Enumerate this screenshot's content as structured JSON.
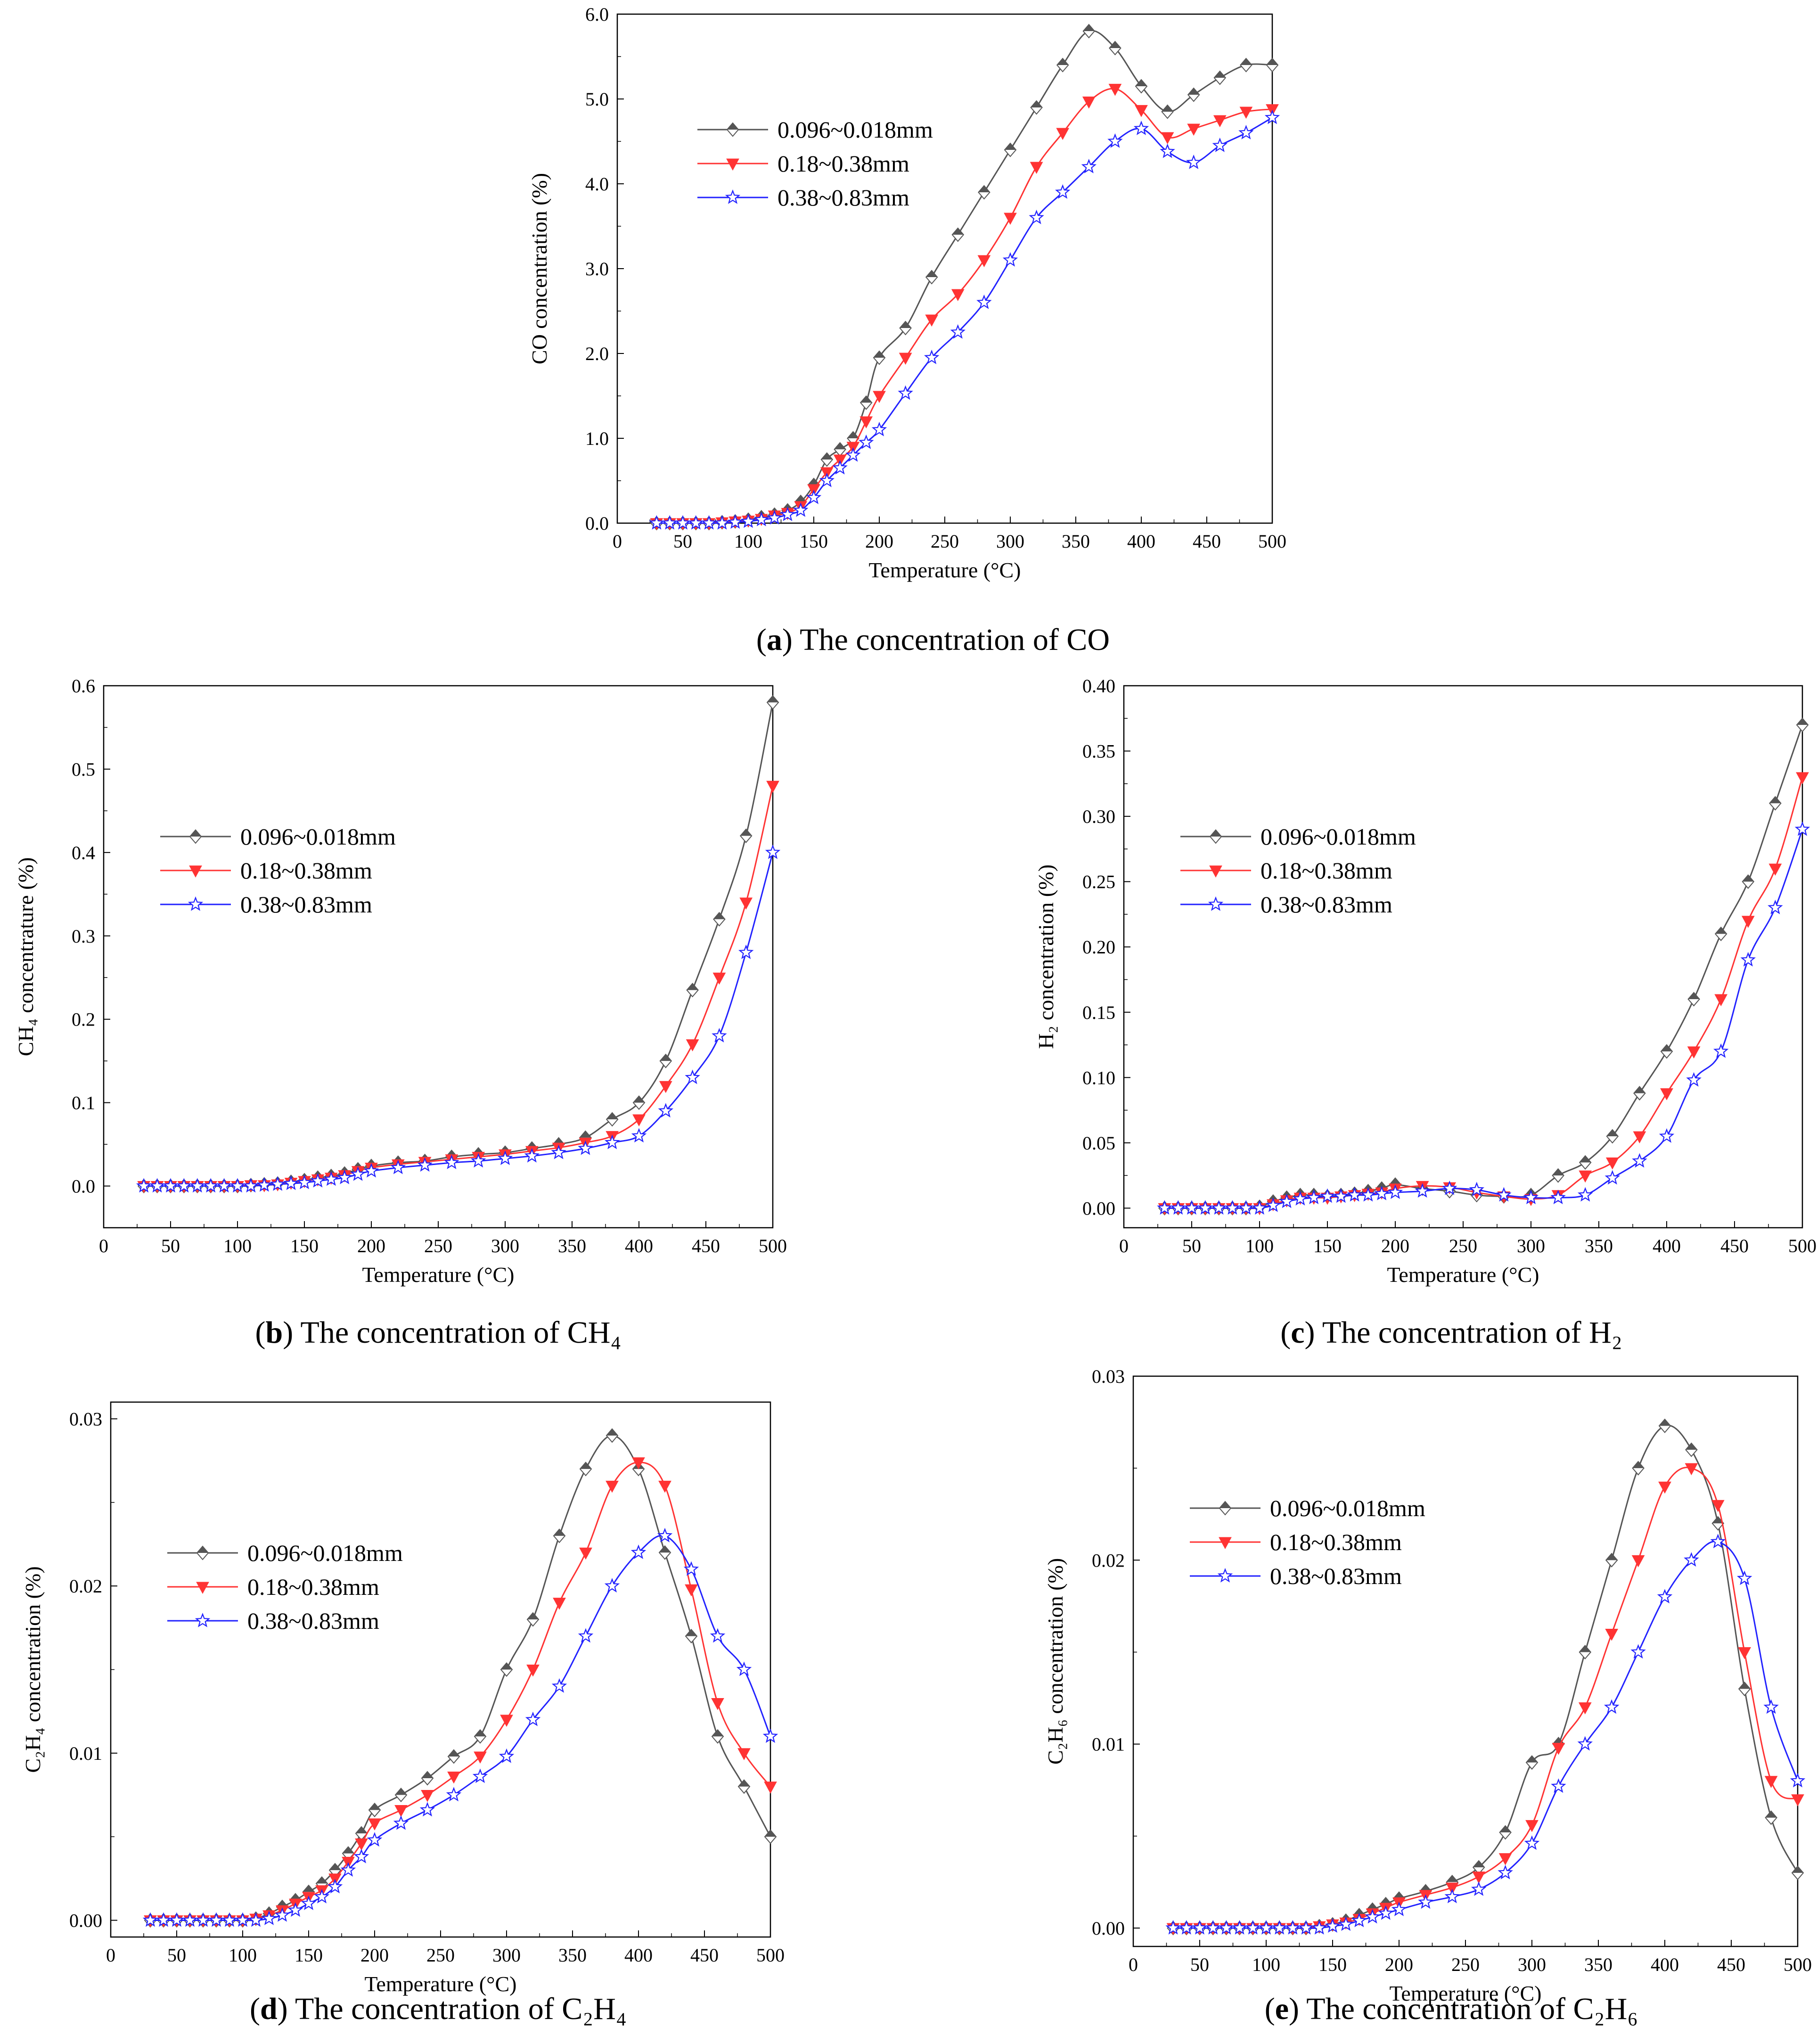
{
  "captions": [
    {
      "letter": "a",
      "text": ") The concentration of CO"
    },
    {
      "letter": "b",
      "text": ") The concentration of CH₄"
    },
    {
      "letter": "c",
      "text": ") The concentration of H₂"
    },
    {
      "letter": "d",
      "text": ") The concentration of C₂H₄"
    },
    {
      "letter": "e",
      "text": ") The concentration of C₂H₆"
    }
  ],
  "series_styles": [
    {
      "color": "#555555",
      "marker": "diamond"
    },
    {
      "color": "#ff3333",
      "marker": "triangle-down"
    },
    {
      "color": "#2222ff",
      "marker": "star"
    }
  ],
  "chart_data": [
    {
      "type": "line",
      "xlabel": "Temperature (°C)",
      "ylabel": "CO concentration (%)",
      "xlim": [
        0,
        500
      ],
      "ylim": [
        0,
        6
      ],
      "xticks": [
        0,
        50,
        100,
        150,
        200,
        250,
        300,
        350,
        400,
        450,
        500
      ],
      "xtick_labels": [
        "0",
        "50",
        "100",
        "150",
        "200",
        "250",
        "300",
        "350",
        "400",
        "450",
        "500"
      ],
      "yticks": [
        0,
        1,
        2,
        3,
        4,
        5,
        6
      ],
      "ytick_labels": [
        "0.0",
        "1.0",
        "2.0",
        "3.0",
        "4.0",
        "5.0",
        "6.0"
      ],
      "legend_position": "upper-left",
      "x": [
        30,
        40,
        50,
        60,
        70,
        80,
        90,
        100,
        110,
        120,
        130,
        140,
        150,
        160,
        170,
        180,
        190,
        200,
        220,
        240,
        260,
        280,
        300,
        320,
        340,
        360,
        380,
        400,
        420,
        440,
        460,
        480,
        500
      ],
      "series": [
        {
          "name": "0.096~0.018mm",
          "values": [
            0,
            0,
            0,
            0,
            0,
            0.01,
            0.02,
            0.04,
            0.07,
            0.1,
            0.15,
            0.25,
            0.45,
            0.75,
            0.87,
            1.0,
            1.42,
            1.95,
            2.3,
            2.9,
            3.4,
            3.9,
            4.4,
            4.9,
            5.4,
            5.8,
            5.6,
            5.15,
            4.85,
            5.05,
            5.25,
            5.4,
            5.4
          ]
        },
        {
          "name": "0.18~0.38mm",
          "values": [
            0,
            0,
            0,
            0,
            0,
            0.01,
            0.02,
            0.03,
            0.05,
            0.09,
            0.12,
            0.2,
            0.4,
            0.6,
            0.75,
            0.9,
            1.2,
            1.5,
            1.95,
            2.4,
            2.7,
            3.1,
            3.6,
            4.2,
            4.6,
            4.97,
            5.12,
            4.87,
            4.55,
            4.65,
            4.75,
            4.85,
            4.88
          ]
        },
        {
          "name": "0.38~0.83mm",
          "values": [
            0,
            0,
            0,
            0,
            0,
            0,
            0.01,
            0.02,
            0.04,
            0.06,
            0.1,
            0.15,
            0.3,
            0.5,
            0.65,
            0.8,
            0.95,
            1.1,
            1.53,
            1.95,
            2.25,
            2.6,
            3.1,
            3.6,
            3.9,
            4.2,
            4.5,
            4.65,
            4.38,
            4.25,
            4.45,
            4.6,
            4.78
          ]
        }
      ]
    },
    {
      "type": "line",
      "xlabel": "Temperature (°C)",
      "ylabel": "CH₄ concentrature (%)",
      "xlim": [
        0,
        500
      ],
      "ylim": [
        -0.05,
        0.6
      ],
      "xticks": [
        0,
        50,
        100,
        150,
        200,
        250,
        300,
        350,
        400,
        450,
        500
      ],
      "xtick_labels": [
        "0",
        "50",
        "100",
        "150",
        "200",
        "250",
        "300",
        "350",
        "400",
        "450",
        "500"
      ],
      "yticks": [
        0,
        0.1,
        0.2,
        0.3,
        0.4,
        0.5,
        0.6
      ],
      "ytick_labels": [
        "0.0",
        "0.1",
        "0.2",
        "0.3",
        "0.4",
        "0.5",
        "0.6"
      ],
      "legend_position": "upper-left",
      "x": [
        30,
        40,
        50,
        60,
        70,
        80,
        90,
        100,
        110,
        120,
        130,
        140,
        150,
        160,
        170,
        180,
        190,
        200,
        220,
        240,
        260,
        280,
        300,
        320,
        340,
        360,
        380,
        400,
        420,
        440,
        460,
        480,
        500
      ],
      "series": [
        {
          "name": "0.096~0.018mm",
          "values": [
            0,
            0,
            0,
            0,
            0,
            0,
            0,
            0,
            0.001,
            0.002,
            0.003,
            0.005,
            0.007,
            0.01,
            0.012,
            0.015,
            0.02,
            0.024,
            0.028,
            0.03,
            0.035,
            0.038,
            0.04,
            0.045,
            0.05,
            0.058,
            0.08,
            0.1,
            0.15,
            0.235,
            0.32,
            0.42,
            0.58
          ]
        },
        {
          "name": "0.18~0.38mm",
          "values": [
            0,
            0,
            0,
            0,
            0,
            0,
            0,
            0,
            0.001,
            0.001,
            0.002,
            0.004,
            0.006,
            0.008,
            0.01,
            0.013,
            0.018,
            0.022,
            0.026,
            0.029,
            0.032,
            0.035,
            0.038,
            0.042,
            0.046,
            0.052,
            0.06,
            0.08,
            0.12,
            0.17,
            0.25,
            0.34,
            0.48
          ]
        },
        {
          "name": "0.38~0.83mm",
          "values": [
            0,
            0,
            0,
            0,
            0,
            0,
            0,
            0,
            0,
            0.001,
            0.002,
            0.003,
            0.004,
            0.006,
            0.008,
            0.01,
            0.014,
            0.018,
            0.022,
            0.025,
            0.028,
            0.03,
            0.033,
            0.036,
            0.04,
            0.045,
            0.052,
            0.06,
            0.09,
            0.13,
            0.18,
            0.28,
            0.4
          ]
        }
      ]
    },
    {
      "type": "line",
      "xlabel": "Temperature (°C)",
      "ylabel": "H₂ concentration (%)",
      "xlim": [
        0,
        500
      ],
      "ylim": [
        -0.015,
        0.4
      ],
      "xticks": [
        0,
        50,
        100,
        150,
        200,
        250,
        300,
        350,
        400,
        450,
        500
      ],
      "xtick_labels": [
        "0",
        "50",
        "100",
        "150",
        "200",
        "250",
        "300",
        "350",
        "400",
        "450",
        "500"
      ],
      "yticks": [
        0,
        0.05,
        0.1,
        0.15,
        0.2,
        0.25,
        0.3,
        0.35,
        0.4
      ],
      "ytick_labels": [
        "0.00",
        "0.05",
        "0.10",
        "0.15",
        "0.20",
        "0.25",
        "0.30",
        "0.35",
        "0.40"
      ],
      "legend_position": "upper-left",
      "x": [
        30,
        40,
        50,
        60,
        70,
        80,
        90,
        100,
        110,
        120,
        130,
        140,
        150,
        160,
        170,
        180,
        190,
        200,
        220,
        240,
        260,
        280,
        300,
        320,
        340,
        360,
        380,
        400,
        420,
        440,
        460,
        480,
        500
      ],
      "series": [
        {
          "name": "0.096~0.018mm",
          "values": [
            0,
            0,
            0,
            0,
            0,
            0,
            0,
            0.001,
            0.005,
            0.008,
            0.01,
            0.01,
            0.009,
            0.01,
            0.011,
            0.013,
            0.015,
            0.018,
            0.015,
            0.013,
            0.01,
            0.009,
            0.01,
            0.025,
            0.035,
            0.055,
            0.088,
            0.12,
            0.16,
            0.21,
            0.25,
            0.31,
            0.37
          ]
        },
        {
          "name": "0.18~0.38mm",
          "values": [
            0,
            0,
            0,
            0,
            0,
            0,
            0,
            0,
            0.003,
            0.006,
            0.008,
            0.008,
            0.008,
            0.009,
            0.01,
            0.011,
            0.012,
            0.015,
            0.017,
            0.016,
            0.012,
            0.009,
            0.007,
            0.01,
            0.025,
            0.035,
            0.055,
            0.088,
            0.12,
            0.16,
            0.22,
            0.26,
            0.33
          ]
        },
        {
          "name": "0.38~0.83mm",
          "values": [
            0,
            0,
            0,
            0,
            0,
            0,
            0,
            0,
            0.002,
            0.005,
            0.007,
            0.008,
            0.009,
            0.009,
            0.01,
            0.01,
            0.011,
            0.012,
            0.013,
            0.015,
            0.014,
            0.01,
            0.008,
            0.008,
            0.01,
            0.023,
            0.036,
            0.055,
            0.098,
            0.12,
            0.19,
            0.23,
            0.29
          ]
        }
      ]
    },
    {
      "type": "line",
      "xlabel": "Temperature (°C)",
      "ylabel": "C₂H₄ concentration (%)",
      "xlim": [
        0,
        500
      ],
      "ylim": [
        -0.001,
        0.031
      ],
      "xticks": [
        0,
        50,
        100,
        150,
        200,
        250,
        300,
        350,
        400,
        450,
        500
      ],
      "xtick_labels": [
        "0",
        "50",
        "100",
        "150",
        "200",
        "250",
        "300",
        "350",
        "400",
        "450",
        "500"
      ],
      "yticks": [
        0,
        0.01,
        0.02,
        0.03
      ],
      "ytick_labels": [
        "0.00",
        "0.01",
        "0.02",
        "0.03"
      ],
      "legend_position": "upper-left",
      "x": [
        30,
        40,
        50,
        60,
        70,
        80,
        90,
        100,
        110,
        120,
        130,
        140,
        150,
        160,
        170,
        180,
        190,
        200,
        220,
        240,
        260,
        280,
        300,
        320,
        340,
        360,
        380,
        400,
        420,
        440,
        460,
        480,
        500
      ],
      "series": [
        {
          "name": "0.096~0.018mm",
          "values": [
            0,
            0,
            0,
            0,
            0,
            0,
            0,
            0,
            0.0001,
            0.0004,
            0.0008,
            0.0012,
            0.0017,
            0.0022,
            0.003,
            0.004,
            0.0052,
            0.0066,
            0.0075,
            0.0085,
            0.0098,
            0.011,
            0.015,
            0.018,
            0.023,
            0.027,
            0.029,
            0.027,
            0.022,
            0.017,
            0.011,
            0.008,
            0.005
          ]
        },
        {
          "name": "0.18~0.38mm",
          "values": [
            0,
            0,
            0,
            0,
            0,
            0,
            0,
            0,
            0.0001,
            0.0003,
            0.0006,
            0.001,
            0.0014,
            0.0018,
            0.0025,
            0.0035,
            0.0046,
            0.0058,
            0.0066,
            0.0075,
            0.0086,
            0.0098,
            0.012,
            0.015,
            0.019,
            0.022,
            0.026,
            0.0274,
            0.026,
            0.0198,
            0.013,
            0.01,
            0.008
          ]
        },
        {
          "name": "0.38~0.83mm",
          "values": [
            0,
            0,
            0,
            0,
            0,
            0,
            0,
            0,
            0,
            0.0001,
            0.0003,
            0.0006,
            0.001,
            0.0014,
            0.002,
            0.003,
            0.0038,
            0.0048,
            0.0058,
            0.0066,
            0.0075,
            0.0086,
            0.0098,
            0.012,
            0.014,
            0.017,
            0.02,
            0.022,
            0.023,
            0.021,
            0.017,
            0.015,
            0.011
          ]
        }
      ]
    },
    {
      "type": "line",
      "xlabel": "Temperature (°C)",
      "ylabel": "C₂H₆ concentration (%)",
      "xlim": [
        0,
        500
      ],
      "ylim": [
        -0.001,
        0.03
      ],
      "xticks": [
        0,
        50,
        100,
        150,
        200,
        250,
        300,
        350,
        400,
        450,
        500
      ],
      "xtick_labels": [
        "0",
        "50",
        "100",
        "150",
        "200",
        "250",
        "300",
        "350",
        "400",
        "450",
        "500"
      ],
      "yticks": [
        0,
        0.01,
        0.02,
        0.03
      ],
      "ytick_labels": [
        "0.00",
        "0.01",
        "0.02",
        "0.03"
      ],
      "legend_position": "upper-left",
      "x": [
        30,
        40,
        50,
        60,
        70,
        80,
        90,
        100,
        110,
        120,
        130,
        140,
        150,
        160,
        170,
        180,
        190,
        200,
        220,
        240,
        260,
        280,
        300,
        320,
        340,
        360,
        380,
        400,
        420,
        440,
        460,
        480,
        500
      ],
      "series": [
        {
          "name": "0.096~0.018mm",
          "values": [
            0,
            0,
            0,
            0,
            0,
            0,
            0,
            0,
            0,
            0,
            0,
            0.0001,
            0.0002,
            0.0004,
            0.0007,
            0.001,
            0.0013,
            0.0016,
            0.002,
            0.0025,
            0.0033,
            0.0052,
            0.009,
            0.01,
            0.015,
            0.02,
            0.025,
            0.0273,
            0.026,
            0.022,
            0.013,
            0.006,
            0.003
          ]
        },
        {
          "name": "0.18~0.38mm",
          "values": [
            0,
            0,
            0,
            0,
            0,
            0,
            0,
            0,
            0,
            0,
            0,
            0.0001,
            0.0002,
            0.0003,
            0.0005,
            0.0008,
            0.0011,
            0.0014,
            0.0018,
            0.0022,
            0.0028,
            0.0038,
            0.0056,
            0.0098,
            0.012,
            0.016,
            0.02,
            0.024,
            0.025,
            0.023,
            0.015,
            0.008,
            0.007
          ]
        },
        {
          "name": "0.38~0.83mm",
          "values": [
            0,
            0,
            0,
            0,
            0,
            0,
            0,
            0,
            0,
            0,
            0,
            0,
            0.0001,
            0.0002,
            0.0004,
            0.0006,
            0.0008,
            0.001,
            0.0014,
            0.0017,
            0.0021,
            0.003,
            0.0046,
            0.0077,
            0.01,
            0.012,
            0.015,
            0.018,
            0.02,
            0.021,
            0.019,
            0.012,
            0.008
          ]
        }
      ]
    }
  ]
}
